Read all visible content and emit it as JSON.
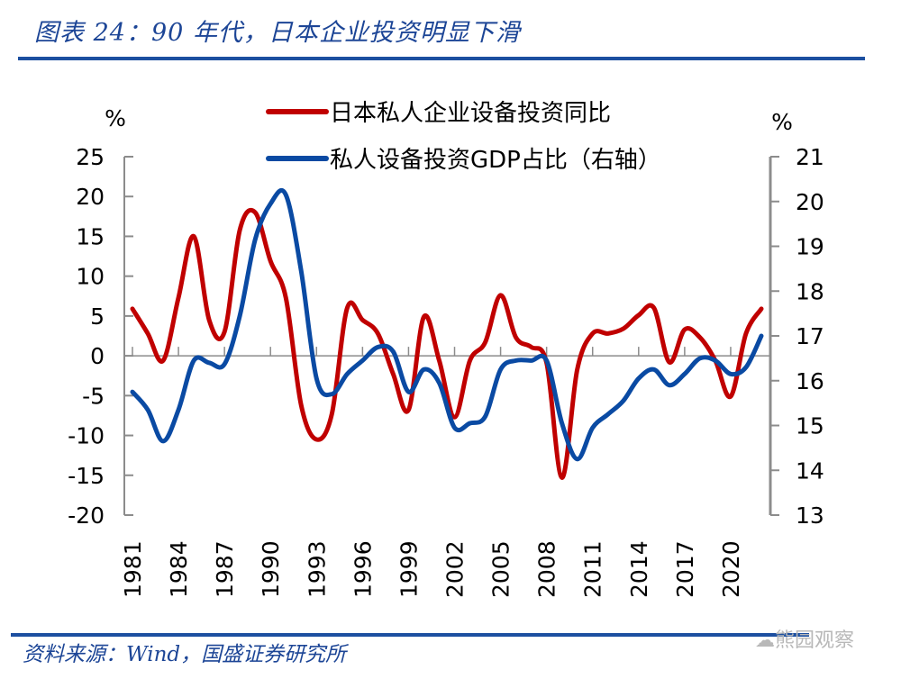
{
  "header": {
    "title": "图表 24：90 年代，日本企业投资明显下滑"
  },
  "footer": {
    "source": "资料来源：Wind，国盛证券研究所",
    "watermark": "熊园观察"
  },
  "colors": {
    "red_series": "#c00000",
    "blue_series": "#0a4aa3",
    "accent": "#1c4fa0"
  },
  "chart_data": {
    "type": "line",
    "title": "图表 24：90 年代，日本企业投资明显下滑",
    "x": [
      1981,
      1982,
      1983,
      1984,
      1985,
      1986,
      1987,
      1988,
      1989,
      1990,
      1991,
      1992,
      1993,
      1994,
      1995,
      1996,
      1997,
      1998,
      1999,
      2000,
      2001,
      2002,
      2003,
      2004,
      2005,
      2006,
      2007,
      2008,
      2009,
      2010,
      2011,
      2012,
      2013,
      2014,
      2015,
      2016,
      2017,
      2018,
      2019,
      2020,
      2021,
      2022
    ],
    "x_tick_labels": [
      "1981",
      "1984",
      "1987",
      "1990",
      "1993",
      "1996",
      "1999",
      "2002",
      "2005",
      "2008",
      "2011",
      "2014",
      "2017",
      "2020"
    ],
    "left_axis": {
      "label": "%",
      "ylim": [
        -20,
        25
      ],
      "ticks": [
        "25",
        "20",
        "15",
        "10",
        "5",
        "0",
        "-5",
        "-10",
        "-15",
        "-20"
      ]
    },
    "right_axis": {
      "label": "%",
      "ylim": [
        13,
        21
      ],
      "ticks": [
        "21",
        "20",
        "19",
        "18",
        "17",
        "16",
        "15",
        "14",
        "13"
      ]
    },
    "legend_position": "top-right",
    "series": [
      {
        "name": "日本私人企业设备投资同比",
        "axis": "left",
        "color": "#c00000",
        "values": [
          5.9,
          2.8,
          -0.6,
          7.3,
          15.0,
          4.5,
          3.0,
          15.8,
          18.0,
          11.9,
          7.3,
          -6.2,
          -10.5,
          -7.3,
          6.0,
          4.5,
          2.8,
          -2.3,
          -6.8,
          4.9,
          -0.6,
          -7.7,
          -0.6,
          1.7,
          7.6,
          2.3,
          1.1,
          -0.9,
          -15.3,
          -1.7,
          2.8,
          2.8,
          3.4,
          5.1,
          6.0,
          -0.8,
          3.3,
          2.3,
          -0.6,
          -5.1,
          2.8,
          5.9
        ]
      },
      {
        "name": "私人设备投资GDP占比（右轴）",
        "axis": "right",
        "color": "#0a4aa3",
        "values": [
          15.75,
          15.35,
          14.65,
          15.35,
          16.45,
          16.4,
          16.37,
          17.45,
          19.15,
          19.95,
          20.15,
          18.45,
          16.05,
          15.7,
          16.15,
          16.45,
          16.75,
          16.65,
          15.75,
          16.25,
          15.95,
          14.95,
          15.05,
          15.2,
          16.25,
          16.45,
          16.45,
          16.45,
          15.05,
          14.25,
          14.95,
          15.25,
          15.55,
          16.05,
          16.25,
          15.9,
          16.15,
          16.5,
          16.45,
          16.15,
          16.3,
          17.0
        ]
      }
    ]
  }
}
